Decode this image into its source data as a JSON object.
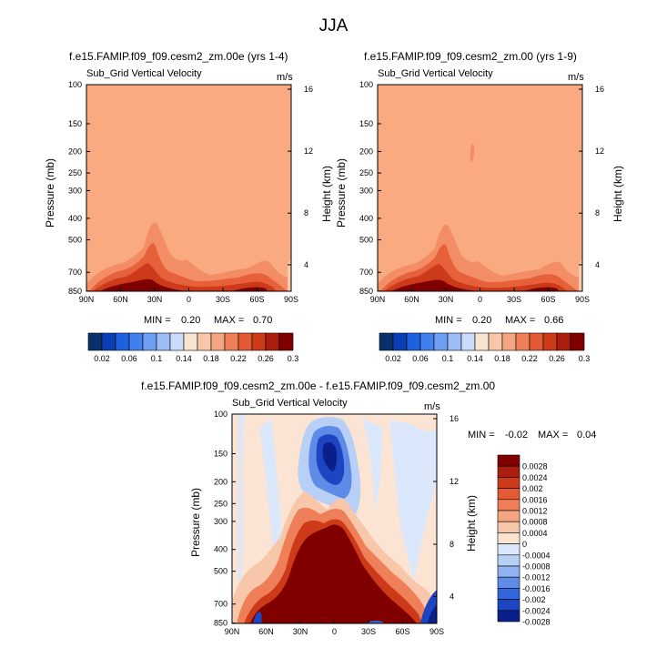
{
  "main_title": "JJA",
  "chart_data": [
    {
      "type": "heatmap",
      "title": "f.e15.FAMIP.f09_f09.cesm2_zm.00e (yrs 1-4)",
      "subtitle": "Sub_Grid Vertical Velocity",
      "units": "m/s",
      "ylabel": "Pressure (mb)",
      "y2label": "Height (km)",
      "x_ticks": [
        "90N",
        "60N",
        "30N",
        "0",
        "30S",
        "60S",
        "90S"
      ],
      "y_ticks": [
        "100",
        "150",
        "200",
        "250",
        "300",
        "400",
        "500",
        "700",
        "850"
      ],
      "y2_ticks": [
        "16",
        "12",
        "8",
        "4"
      ],
      "min_label": "MIN =",
      "min": "0.20",
      "max_label": "MAX =",
      "max": "0.70",
      "colorbar_labels": [
        "0.02",
        "0.06",
        "0.1",
        "0.14",
        "0.18",
        "0.22",
        "0.26",
        "0.3"
      ]
    },
    {
      "type": "heatmap",
      "title": "f.e15.FAMIP.f09_f09.cesm2_zm.00 (yrs 1-9)",
      "subtitle": "Sub_Grid Vertical Velocity",
      "units": "m/s",
      "ylabel": "Pressure (mb)",
      "y2label": "Height (km)",
      "x_ticks": [
        "90N",
        "60N",
        "30N",
        "0",
        "30S",
        "60S",
        "90S"
      ],
      "y_ticks": [
        "100",
        "150",
        "200",
        "250",
        "300",
        "400",
        "500",
        "700",
        "850"
      ],
      "y2_ticks": [
        "16",
        "12",
        "8",
        "4"
      ],
      "min_label": "MIN =",
      "min": "0.20",
      "max_label": "MAX =",
      "max": "0.66",
      "colorbar_labels": [
        "0.02",
        "0.06",
        "0.1",
        "0.14",
        "0.18",
        "0.22",
        "0.26",
        "0.3"
      ]
    },
    {
      "type": "heatmap",
      "title": "f.e15.FAMIP.f09_f09.cesm2_zm.00e - f.e15.FAMIP.f09_f09.cesm2_zm.00",
      "subtitle": "Sub_Grid Vertical Velocity",
      "units": "m/s",
      "ylabel": "Pressure (mb)",
      "y2label": "Height (km)",
      "x_ticks": [
        "90N",
        "60N",
        "30N",
        "0",
        "30S",
        "60S",
        "90S"
      ],
      "y_ticks": [
        "100",
        "150",
        "200",
        "250",
        "300",
        "400",
        "500",
        "700",
        "850"
      ],
      "y2_ticks": [
        "16",
        "12",
        "8",
        "4"
      ],
      "min_label": "MIN =",
      "min": "-0.02",
      "max_label": "MAX =",
      "max": "0.04",
      "colorbar_labels": [
        "0.0028",
        "0.0024",
        "0.002",
        "0.0016",
        "0.0012",
        "0.0008",
        "0.0004",
        "0",
        "-0.0004",
        "-0.0008",
        "-0.0012",
        "-0.0016",
        "-0.002",
        "-0.0024",
        "-0.0028"
      ]
    }
  ],
  "colors": {
    "abs_scale": [
      "#08306b",
      "#0b3fb5",
      "#1f5fe0",
      "#3f7fee",
      "#6f9ef2",
      "#9cbcf5",
      "#c9dbf8",
      "#fbe3d2",
      "#f8c6a8",
      "#f4a582",
      "#ef7f58",
      "#e35a34",
      "#cc3a1a",
      "#ab1e0e",
      "#800000"
    ],
    "diff_scale": [
      "#800000",
      "#ab1e0e",
      "#cc3a1a",
      "#e35a34",
      "#ef7f58",
      "#f4a582",
      "#f8c6a8",
      "#fbe3d2",
      "#dbe8fb",
      "#b9d0f6",
      "#8fb2f1",
      "#5f8be6",
      "#3366dd",
      "#1d45c2",
      "#0a1f8c"
    ],
    "background_abs": "#f9aa80",
    "background_diff": "#fce4d4"
  }
}
